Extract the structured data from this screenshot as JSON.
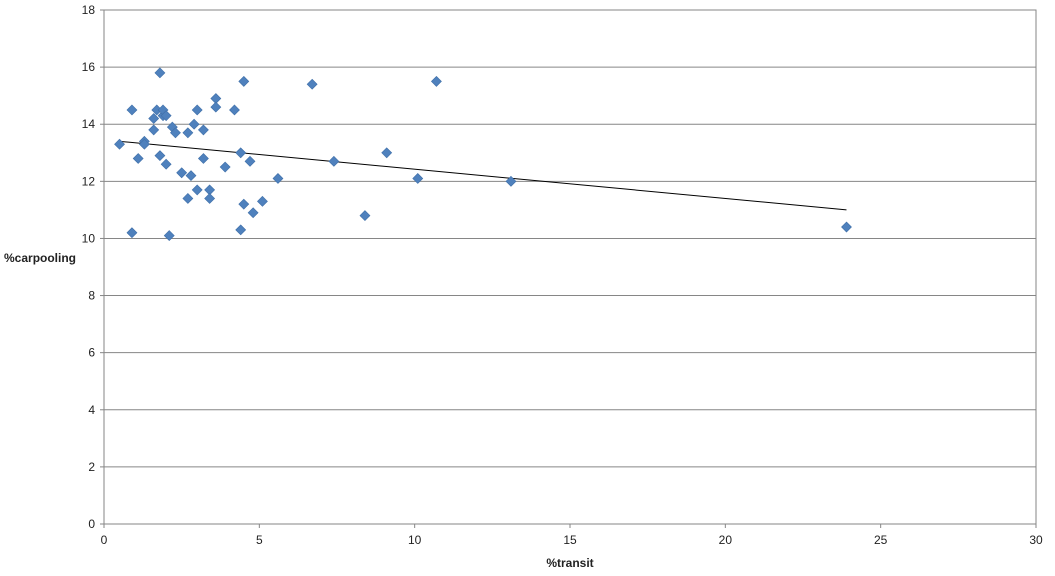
{
  "chart_data": {
    "type": "scatter",
    "xlabel": "%transit",
    "ylabel": "%carpooling",
    "xlim": [
      0,
      30
    ],
    "ylim": [
      0,
      18
    ],
    "x_ticks": [
      0,
      5,
      10,
      15,
      20,
      25,
      30
    ],
    "y_ticks": [
      0,
      2,
      4,
      6,
      8,
      10,
      12,
      14,
      16,
      18
    ],
    "grid": "horizontal",
    "legend": "none",
    "marker": "diamond",
    "marker_color": "#4F81BD",
    "trendline": {
      "type": "linear",
      "x": [
        0.5,
        23.9
      ],
      "y": [
        13.4,
        11.0
      ],
      "color": "#000000"
    },
    "series": [
      {
        "x": [
          0.5,
          0.9,
          0.9,
          1.1,
          1.3,
          1.3,
          1.6,
          1.6,
          1.7,
          1.8,
          1.8,
          1.9,
          1.9,
          2.0,
          2.0,
          2.1,
          2.2,
          2.3,
          2.5,
          2.7,
          2.7,
          2.8,
          2.9,
          3.0,
          3.0,
          3.2,
          3.2,
          3.4,
          3.4,
          3.6,
          3.6,
          3.9,
          4.2,
          4.4,
          4.4,
          4.5,
          4.5,
          4.7,
          4.8,
          5.1,
          5.6,
          6.7,
          7.4,
          8.4,
          9.1,
          10.1,
          10.7,
          13.1,
          23.9
        ],
        "y": [
          13.3,
          14.5,
          10.2,
          12.8,
          13.4,
          13.3,
          14.2,
          13.8,
          14.5,
          15.8,
          12.9,
          14.3,
          14.5,
          14.3,
          12.6,
          10.1,
          13.9,
          13.7,
          12.3,
          13.7,
          11.4,
          12.2,
          14.0,
          14.5,
          11.7,
          13.8,
          12.8,
          11.7,
          11.4,
          14.9,
          14.6,
          12.5,
          14.5,
          13.0,
          10.3,
          15.5,
          11.2,
          12.7,
          10.9,
          11.3,
          12.1,
          15.4,
          12.7,
          10.8,
          13.0,
          12.1,
          15.5,
          12.0,
          10.4
        ]
      }
    ]
  }
}
